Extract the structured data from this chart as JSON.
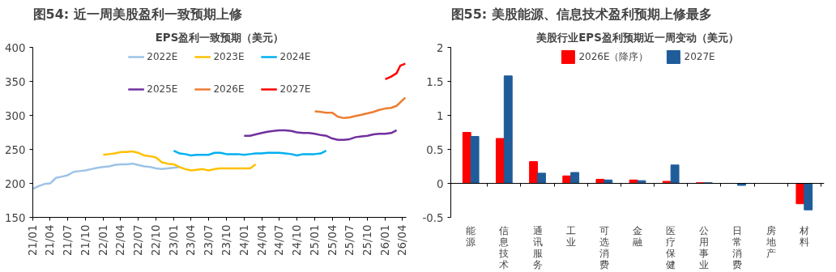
{
  "chart_data": [
    {
      "type": "line",
      "title": "图54: 近一周美股盈利一致预期上修",
      "subtitle": "EPS盈利一致预期（美元）",
      "legend": "top",
      "grid": false,
      "line_style": "solid",
      "xlim": [
        "2021-01",
        "2026-04-20"
      ],
      "ylim": [
        150,
        400
      ],
      "yticks": [
        150,
        200,
        250,
        300,
        350,
        400
      ],
      "xticks": [
        {
          "value": "2021-01",
          "label": "21/01"
        },
        {
          "value": "2021-04",
          "label": "21/04"
        },
        {
          "value": "2021-07",
          "label": "21/07"
        },
        {
          "value": "2021-10",
          "label": "21/10"
        },
        {
          "value": "2022-01",
          "label": "22/01"
        },
        {
          "value": "2022-04",
          "label": "22/04"
        },
        {
          "value": "2022-07",
          "label": "22/07"
        },
        {
          "value": "2022-10",
          "label": "22/10"
        },
        {
          "value": "2023-01",
          "label": "23/01"
        },
        {
          "value": "2023-04",
          "label": "23/04"
        },
        {
          "value": "2023-07",
          "label": "23/07"
        },
        {
          "value": "2023-10",
          "label": "23/10"
        },
        {
          "value": "2024-01",
          "label": "24/01"
        },
        {
          "value": "2024-04",
          "label": "24/04"
        },
        {
          "value": "2024-07",
          "label": "24/07"
        },
        {
          "value": "2024-10",
          "label": "24/10"
        },
        {
          "value": "2025-01",
          "label": "25/01"
        },
        {
          "value": "2025-04",
          "label": "25/04"
        },
        {
          "value": "2025-07",
          "label": "25/07"
        },
        {
          "value": "2025-10",
          "label": "25/10"
        },
        {
          "value": "2026-01",
          "label": "26/01"
        },
        {
          "value": "2026-04",
          "label": "26/04"
        }
      ],
      "series": [
        {
          "name": "2022E",
          "color": "#9dc3e6",
          "x": [
            "2021-01",
            "2021-02",
            "2021-03",
            "2021-04",
            "2021-05",
            "2021-06",
            "2021-07",
            "2021-08",
            "2021-09",
            "2021-10",
            "2021-11",
            "2021-12",
            "2022-01",
            "2022-02",
            "2022-03",
            "2022-04",
            "2022-05",
            "2022-06",
            "2022-07",
            "2022-08",
            "2022-09",
            "2022-10",
            "2022-11",
            "2022-12",
            "2023-01",
            "2023-02"
          ],
          "values": [
            192,
            196,
            199,
            200,
            208,
            210,
            212,
            217,
            218,
            219,
            221,
            223,
            224,
            225,
            227,
            228,
            228,
            229,
            227,
            225,
            224,
            222,
            221,
            222,
            223,
            224
          ]
        },
        {
          "name": "2023E",
          "color": "#ffc000",
          "x": [
            "2022-01",
            "2022-02",
            "2022-03",
            "2022-04",
            "2022-05",
            "2022-06",
            "2022-07",
            "2022-08",
            "2022-09",
            "2022-10",
            "2022-11",
            "2022-12",
            "2023-01",
            "2023-02",
            "2023-03",
            "2023-04",
            "2023-05",
            "2023-06",
            "2023-07",
            "2023-08",
            "2023-09",
            "2023-10",
            "2023-11",
            "2023-12",
            "2024-01",
            "2024-02",
            "2024-03"
          ],
          "values": [
            242,
            243,
            244,
            246,
            246,
            247,
            245,
            241,
            240,
            238,
            231,
            229,
            228,
            224,
            221,
            219,
            220,
            221,
            219,
            221,
            222,
            222,
            222,
            222,
            222,
            222,
            228
          ]
        },
        {
          "name": "2024E",
          "color": "#00b0f0",
          "x": [
            "2023-01",
            "2023-02",
            "2023-03",
            "2023-04",
            "2023-05",
            "2023-06",
            "2023-07",
            "2023-08",
            "2023-09",
            "2023-10",
            "2023-11",
            "2023-12",
            "2024-01",
            "2024-02",
            "2024-03",
            "2024-04",
            "2024-05",
            "2024-06",
            "2024-07",
            "2024-08",
            "2024-09",
            "2024-10",
            "2024-11",
            "2024-12",
            "2025-01",
            "2025-02",
            "2025-03"
          ],
          "values": [
            248,
            244,
            243,
            241,
            242,
            242,
            242,
            245,
            245,
            243,
            243,
            243,
            242,
            243,
            244,
            244,
            245,
            245,
            245,
            244,
            243,
            241,
            243,
            243,
            243,
            244,
            248
          ]
        },
        {
          "name": "2025E",
          "color": "#7030a0",
          "x": [
            "2024-01",
            "2024-02",
            "2024-03",
            "2024-04",
            "2024-05",
            "2024-06",
            "2024-07",
            "2024-08",
            "2024-09",
            "2024-10",
            "2024-11",
            "2024-12",
            "2025-01",
            "2025-02",
            "2025-03",
            "2025-04",
            "2025-05",
            "2025-06",
            "2025-07",
            "2025-08",
            "2025-09",
            "2025-10",
            "2025-11",
            "2025-12",
            "2026-01",
            "2026-02",
            "2026-03"
          ],
          "values": [
            270,
            270,
            272,
            274,
            276,
            277,
            278,
            278,
            277,
            275,
            274,
            274,
            273,
            271,
            270,
            266,
            264,
            264,
            265,
            268,
            269,
            270,
            272,
            273,
            273,
            274,
            278
          ]
        },
        {
          "name": "2026E",
          "color": "#ed7d31",
          "x": [
            "2025-01",
            "2025-02",
            "2025-03",
            "2025-04",
            "2025-05",
            "2025-06",
            "2025-07",
            "2025-08",
            "2025-09",
            "2025-10",
            "2025-11",
            "2025-12",
            "2026-01",
            "2026-02",
            "2026-03",
            "2026-04-15"
          ],
          "values": [
            306,
            305,
            304,
            304,
            298,
            296,
            297,
            299,
            301,
            303,
            305,
            308,
            310,
            311,
            314,
            326
          ]
        },
        {
          "name": "2027E",
          "color": "#ff0000",
          "x": [
            "2026-01",
            "2026-02",
            "2026-03",
            "2026-03-20",
            "2026-04-15"
          ],
          "values": [
            353,
            357,
            362,
            373,
            376
          ]
        }
      ]
    },
    {
      "type": "bar",
      "title": "图55: 美股能源、信息技术盈利预期上修最多",
      "subtitle": "美股行业EPS盈利预期近一周变动（美元）",
      "legend": "top",
      "grid": false,
      "categories": [
        "能源",
        "信息技术",
        "通讯服务",
        "工业",
        "可选消费",
        "金融",
        "医疗保健",
        "公用事业",
        "日常消费",
        "房地产",
        "材料"
      ],
      "ylim": [
        -0.5,
        2
      ],
      "ref_lines": [
        {
          "axis": "y",
          "value": 0
        }
      ],
      "yticks": [
        -0.5,
        0,
        0.5,
        1,
        1.5,
        2
      ],
      "series": [
        {
          "name": "2026E（降序）",
          "color": "#ff0000",
          "values": [
            0.75,
            0.66,
            0.32,
            0.11,
            0.06,
            0.05,
            0.03,
            0.01,
            0,
            0,
            -0.3
          ]
        },
        {
          "name": "2027E",
          "color": "#1f5c99",
          "values": [
            0.69,
            1.58,
            0.15,
            0.16,
            0.05,
            0.04,
            0.27,
            0.01,
            -0.03,
            0,
            -0.39
          ]
        }
      ]
    }
  ]
}
